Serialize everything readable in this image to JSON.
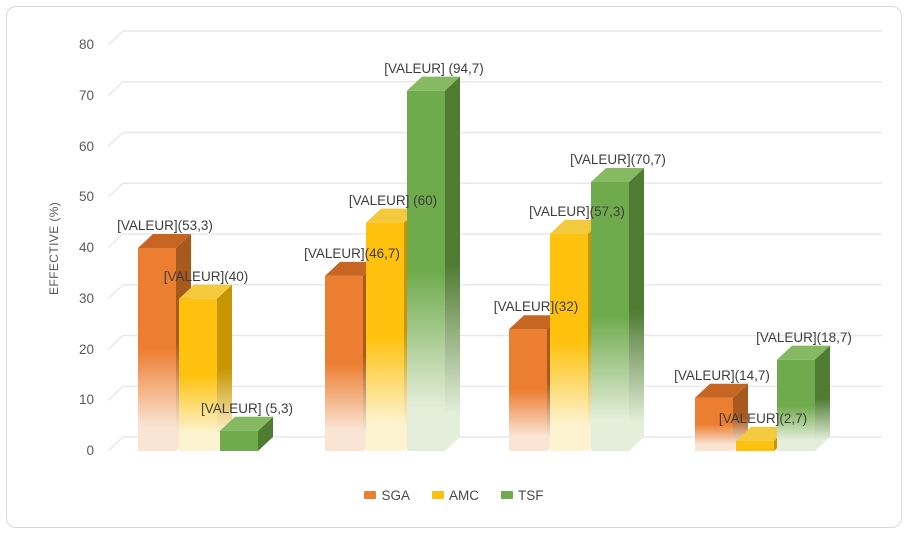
{
  "figure": {
    "background": "#ffffff",
    "border_color": "#d8d8d8"
  },
  "chart_data": {
    "type": "bar",
    "style": "3d-beveled-columns-with-bottom-fade",
    "title": "",
    "xlabel": "",
    "ylabel": "EFFECTIVE (%)",
    "ylim": [
      0,
      80
    ],
    "yticks": [
      0,
      10,
      20,
      30,
      40,
      50,
      60,
      70,
      80
    ],
    "grid": true,
    "gridline_color": "#e8e8e8",
    "legend_position": "bottom-center",
    "categories": [
      "",
      "",
      "",
      ""
    ],
    "series": [
      {
        "name": "SGA",
        "color": "#EC7E31",
        "top_color": "#C76523",
        "side_color": "#A85A1E",
        "fade_color": "#FAE4D4",
        "values": [
          40,
          34.5,
          24,
          10.5
        ],
        "labels": [
          "[VALEUR](53,3)",
          "[VALEUR](46,7)",
          "[VALEUR](32)",
          "[VALEUR](14,7)"
        ]
      },
      {
        "name": "AMC",
        "color": "#FEC10D",
        "top_color": "#F3C93E",
        "side_color": "#C79500",
        "fade_color": "#FDF3D0",
        "values": [
          30,
          45,
          42.8,
          2
        ],
        "labels": [
          "[VALEUR](40)",
          "[VALEUR] (60)",
          "[VALEUR](57,3)",
          "[VALEUR](2,7)"
        ]
      },
      {
        "name": "TSF",
        "color": "#6FAA4C",
        "top_color": "#85BA62",
        "side_color": "#4F7B33",
        "fade_color": "#E4EEDA",
        "values": [
          4,
          71,
          53,
          18
        ],
        "labels": [
          "[VALEUR] (5,3)",
          "[VALEUR] (94,7)",
          "[VALEUR](70,7)",
          "[VALEUR](18,7)"
        ]
      }
    ],
    "tick_label_color": "#595959",
    "data_label_color": "#3d3d3d"
  }
}
